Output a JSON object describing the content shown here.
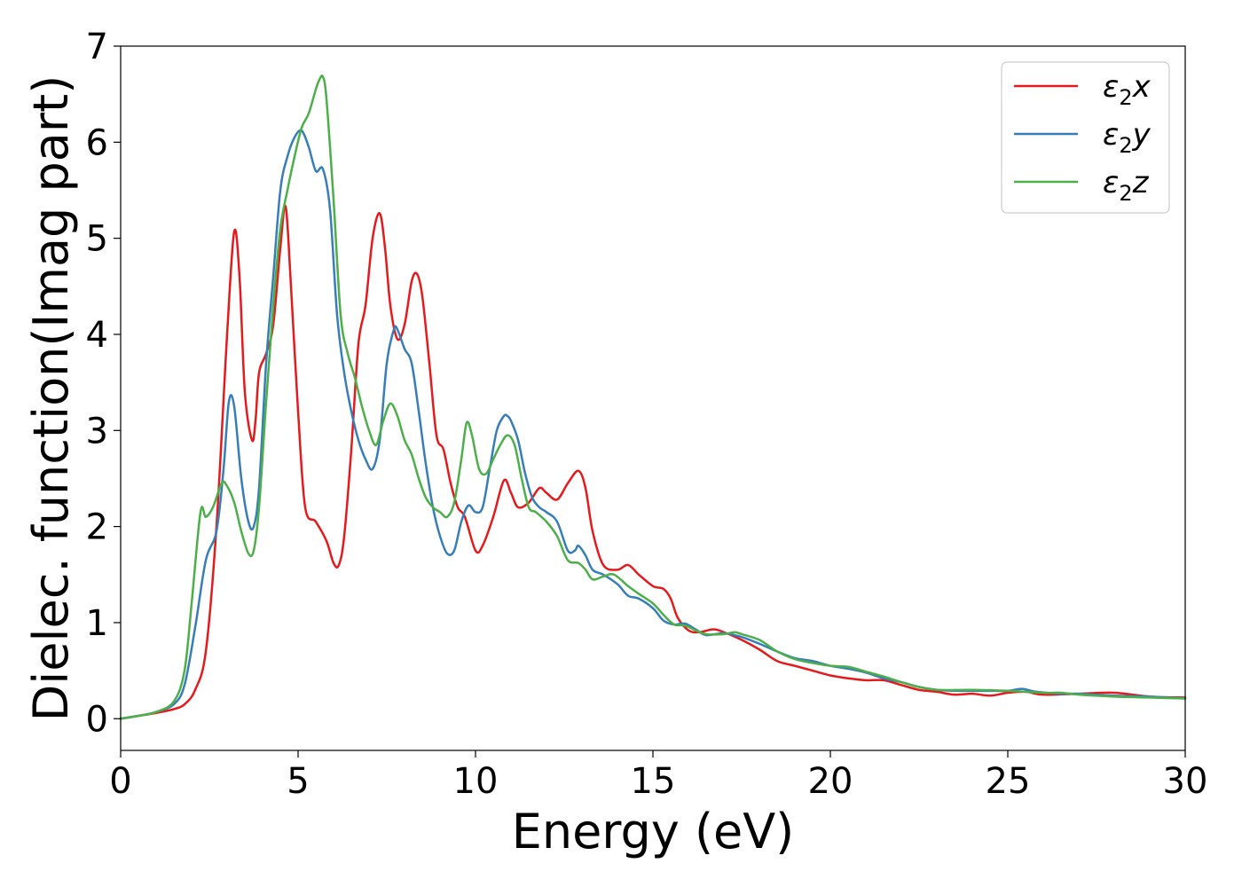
{
  "chart_data": {
    "type": "line",
    "title": "",
    "xlabel": "Energy (eV)",
    "ylabel": "Dielec. function(Imag part)",
    "xlim": [
      0,
      30
    ],
    "ylim": [
      -0.33,
      7
    ],
    "xticks": [
      0,
      5,
      10,
      15,
      20,
      25,
      30
    ],
    "yticks": [
      0,
      1,
      2,
      3,
      4,
      5,
      6,
      7
    ],
    "grid": false,
    "legend_position": "top-right",
    "series": [
      {
        "name": "ε₂x",
        "legend_base": "ε",
        "legend_sub": "2",
        "legend_suffix": "x",
        "color": "#e41a1c",
        "x": [
          0,
          0.5,
          1.0,
          1.5,
          1.8,
          2.1,
          2.4,
          2.7,
          3.0,
          3.2,
          3.35,
          3.5,
          3.7,
          3.8,
          3.9,
          4.1,
          4.3,
          4.5,
          4.65,
          4.8,
          5.0,
          5.2,
          5.5,
          5.8,
          6.0,
          6.15,
          6.3,
          6.5,
          6.7,
          6.9,
          7.1,
          7.3,
          7.45,
          7.6,
          7.8,
          8.0,
          8.2,
          8.35,
          8.5,
          8.7,
          8.9,
          9.1,
          9.3,
          9.5,
          9.7,
          10.0,
          10.2,
          10.5,
          10.8,
          11.0,
          11.2,
          11.5,
          11.8,
          12.0,
          12.3,
          12.6,
          12.9,
          13.1,
          13.3,
          13.6,
          14.0,
          14.3,
          14.6,
          15.0,
          15.3,
          15.5,
          15.7,
          16.0,
          16.3,
          16.7,
          17.0,
          17.5,
          18.0,
          18.5,
          19.0,
          19.5,
          20.0,
          20.5,
          21.0,
          21.5,
          22.0,
          22.5,
          23.0,
          23.5,
          24.0,
          24.5,
          25.0,
          25.5,
          26.0,
          27.0,
          28.0,
          29.0,
          30.0
        ],
        "values": [
          0,
          0.03,
          0.06,
          0.1,
          0.15,
          0.3,
          0.7,
          2.0,
          4.0,
          5.07,
          4.6,
          3.4,
          2.9,
          3.1,
          3.6,
          3.8,
          4.1,
          4.9,
          5.33,
          4.5,
          3.2,
          2.2,
          2.05,
          1.85,
          1.62,
          1.6,
          1.9,
          2.8,
          3.9,
          4.3,
          5.0,
          5.26,
          4.9,
          4.3,
          3.95,
          4.1,
          4.55,
          4.63,
          4.4,
          3.7,
          2.95,
          2.8,
          2.45,
          2.2,
          2.1,
          1.75,
          1.8,
          2.1,
          2.48,
          2.35,
          2.2,
          2.25,
          2.4,
          2.35,
          2.28,
          2.45,
          2.58,
          2.4,
          1.95,
          1.6,
          1.55,
          1.6,
          1.5,
          1.38,
          1.35,
          1.25,
          1.05,
          0.92,
          0.9,
          0.93,
          0.9,
          0.82,
          0.72,
          0.6,
          0.55,
          0.5,
          0.45,
          0.42,
          0.4,
          0.4,
          0.35,
          0.3,
          0.28,
          0.25,
          0.26,
          0.24,
          0.27,
          0.28,
          0.25,
          0.26,
          0.27,
          0.23,
          0.22
        ]
      },
      {
        "name": "ε₂y",
        "legend_base": "ε",
        "legend_sub": "2",
        "legend_suffix": "y",
        "color": "#377eb8",
        "x": [
          0,
          0.5,
          1.0,
          1.5,
          1.8,
          2.1,
          2.4,
          2.7,
          2.9,
          3.05,
          3.2,
          3.4,
          3.6,
          3.75,
          3.9,
          4.1,
          4.3,
          4.5,
          4.7,
          4.9,
          5.1,
          5.3,
          5.5,
          5.7,
          5.9,
          6.1,
          6.3,
          6.5,
          6.7,
          6.9,
          7.1,
          7.3,
          7.5,
          7.7,
          7.8,
          8.0,
          8.2,
          8.4,
          8.6,
          8.8,
          9.0,
          9.2,
          9.4,
          9.6,
          9.8,
          10.0,
          10.2,
          10.4,
          10.6,
          10.8,
          10.9,
          11.0,
          11.2,
          11.4,
          11.6,
          11.8,
          12.0,
          12.3,
          12.6,
          12.8,
          12.9,
          13.1,
          13.3,
          13.6,
          14.0,
          14.3,
          14.6,
          15.0,
          15.3,
          15.6,
          15.9,
          16.2,
          16.5,
          17.0,
          17.5,
          18.0,
          18.5,
          19.0,
          19.5,
          20.0,
          20.5,
          21.0,
          21.5,
          22.0,
          22.5,
          23.0,
          23.5,
          24.0,
          24.5,
          25.0,
          25.4,
          25.8,
          26.5,
          27.0,
          28.0,
          29.0,
          30.0
        ],
        "values": [
          0,
          0.03,
          0.07,
          0.15,
          0.35,
          0.95,
          1.65,
          1.95,
          2.6,
          3.3,
          3.25,
          2.5,
          2.05,
          2.0,
          2.4,
          3.7,
          4.6,
          5.5,
          5.85,
          6.05,
          6.12,
          5.95,
          5.7,
          5.72,
          5.3,
          4.2,
          3.6,
          3.2,
          2.9,
          2.7,
          2.6,
          2.9,
          3.7,
          4.05,
          4.05,
          3.85,
          3.7,
          3.2,
          2.65,
          2.2,
          1.9,
          1.72,
          1.75,
          2.05,
          2.22,
          2.15,
          2.2,
          2.6,
          3.0,
          3.15,
          3.15,
          3.1,
          2.9,
          2.55,
          2.3,
          2.2,
          2.15,
          2.05,
          1.75,
          1.75,
          1.8,
          1.7,
          1.55,
          1.5,
          1.4,
          1.28,
          1.25,
          1.15,
          1.02,
          0.98,
          0.99,
          0.93,
          0.87,
          0.89,
          0.85,
          0.78,
          0.7,
          0.63,
          0.6,
          0.55,
          0.52,
          0.48,
          0.42,
          0.38,
          0.33,
          0.3,
          0.29,
          0.29,
          0.29,
          0.29,
          0.31,
          0.28,
          0.26,
          0.26,
          0.24,
          0.23,
          0.21
        ]
      },
      {
        "name": "ε₂z",
        "legend_base": "ε",
        "legend_sub": "2",
        "legend_suffix": "z",
        "color": "#4daf4a",
        "x": [
          0,
          0.5,
          1.0,
          1.5,
          1.8,
          2.0,
          2.25,
          2.4,
          2.6,
          2.85,
          3.0,
          3.2,
          3.4,
          3.6,
          3.75,
          3.9,
          4.1,
          4.3,
          4.5,
          4.7,
          4.9,
          5.1,
          5.3,
          5.5,
          5.6,
          5.7,
          5.8,
          6.0,
          6.2,
          6.4,
          6.6,
          6.8,
          7.0,
          7.2,
          7.4,
          7.6,
          7.8,
          8.0,
          8.2,
          8.4,
          8.6,
          8.8,
          9.0,
          9.2,
          9.4,
          9.6,
          9.75,
          9.9,
          10.1,
          10.3,
          10.5,
          10.7,
          10.9,
          11.1,
          11.3,
          11.5,
          11.7,
          12.0,
          12.3,
          12.6,
          12.9,
          13.1,
          13.3,
          13.6,
          13.9,
          14.3,
          14.6,
          15.0,
          15.3,
          15.6,
          15.9,
          16.2,
          16.5,
          17.0,
          17.3,
          17.5,
          18.0,
          18.5,
          19.0,
          19.5,
          20.0,
          20.5,
          21.0,
          21.5,
          22.0,
          22.5,
          23.0,
          24.0,
          25.0,
          26.0,
          26.5,
          27.0,
          28.0,
          29.0,
          30.0
        ],
        "values": [
          0,
          0.03,
          0.07,
          0.18,
          0.5,
          1.2,
          2.15,
          2.1,
          2.2,
          2.45,
          2.42,
          2.25,
          1.95,
          1.72,
          1.75,
          2.2,
          3.3,
          4.3,
          5.1,
          5.5,
          5.85,
          6.15,
          6.3,
          6.55,
          6.65,
          6.68,
          6.45,
          5.4,
          4.2,
          3.8,
          3.55,
          3.25,
          3.0,
          2.85,
          3.1,
          3.28,
          3.15,
          2.9,
          2.75,
          2.5,
          2.3,
          2.2,
          2.15,
          2.1,
          2.25,
          2.7,
          3.08,
          2.95,
          2.6,
          2.55,
          2.7,
          2.85,
          2.95,
          2.85,
          2.5,
          2.2,
          2.15,
          2.05,
          1.9,
          1.65,
          1.62,
          1.55,
          1.45,
          1.48,
          1.5,
          1.38,
          1.3,
          1.2,
          1.08,
          0.98,
          0.97,
          0.92,
          0.88,
          0.88,
          0.9,
          0.88,
          0.82,
          0.7,
          0.62,
          0.58,
          0.55,
          0.54,
          0.49,
          0.44,
          0.38,
          0.33,
          0.3,
          0.3,
          0.29,
          0.27,
          0.27,
          0.25,
          0.23,
          0.22,
          0.21
        ]
      }
    ]
  }
}
